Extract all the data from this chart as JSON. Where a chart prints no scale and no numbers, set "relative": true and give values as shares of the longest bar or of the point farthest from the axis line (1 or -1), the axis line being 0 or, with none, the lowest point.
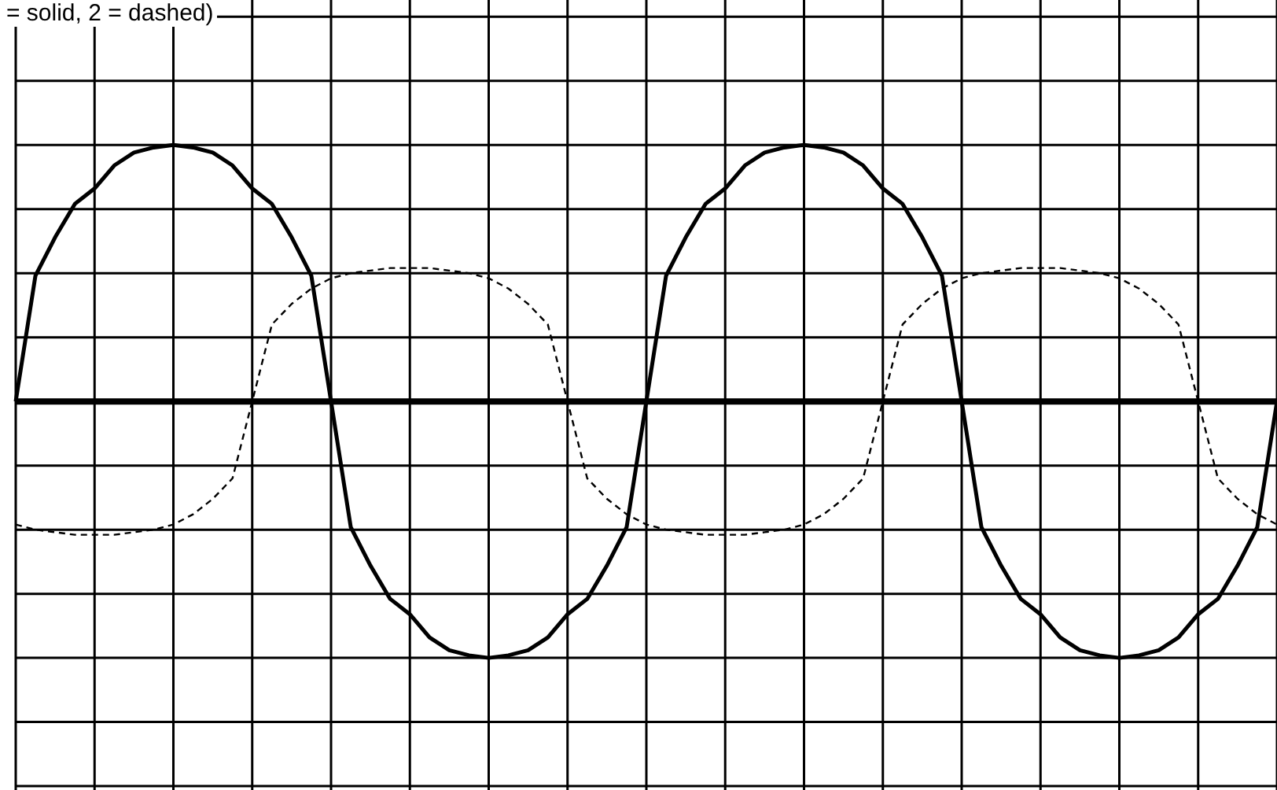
{
  "chart_data": {
    "type": "line",
    "title": "= solid, 2 = dashed)",
    "relative": true,
    "grid": true,
    "categories": [
      null,
      null,
      null,
      null,
      null,
      null,
      null,
      null,
      null,
      null,
      null,
      null,
      null,
      null,
      null,
      null,
      null,
      null,
      null,
      null,
      null,
      null,
      null,
      null,
      null,
      null,
      null,
      null,
      null,
      null,
      null,
      null,
      null,
      null,
      null,
      null,
      null,
      null,
      null,
      null,
      null,
      null,
      null,
      null,
      null,
      null,
      null,
      null,
      null,
      null,
      null,
      null,
      null,
      null,
      null,
      null,
      null,
      null,
      null,
      null,
      null,
      null,
      null,
      null,
      null
    ],
    "series": [
      {
        "color": "#000000",
        "line_style": "solid",
        "values": [
          0,
          0.49,
          0.64,
          0.77,
          0.83,
          0.92,
          0.97,
          0.99,
          1,
          0.99,
          0.97,
          0.92,
          0.83,
          0.77,
          0.64,
          0.49,
          0,
          -0.49,
          -0.64,
          -0.77,
          -0.83,
          -0.92,
          -0.97,
          -0.99,
          -1,
          -0.99,
          -0.97,
          -0.92,
          -0.83,
          -0.77,
          -0.64,
          -0.49,
          0,
          0.49,
          0.64,
          0.77,
          0.83,
          0.92,
          0.97,
          0.99,
          1,
          0.99,
          0.97,
          0.92,
          0.83,
          0.77,
          0.64,
          0.49,
          0,
          -0.49,
          -0.64,
          -0.77,
          -0.83,
          -0.92,
          -0.97,
          -0.99,
          -1,
          -0.99,
          -0.97,
          -0.92,
          -0.83,
          -0.77,
          -0.64,
          -0.49,
          0
        ]
      },
      {
        "color": "#000000",
        "line_style": "dashed",
        "values": [
          -0.48,
          -0.5,
          -0.51,
          -0.52,
          -0.52,
          -0.52,
          -0.51,
          -0.5,
          -0.48,
          -0.44,
          -0.38,
          -0.3,
          0,
          0.3,
          0.38,
          0.44,
          0.48,
          0.5,
          0.51,
          0.52,
          0.52,
          0.52,
          0.51,
          0.5,
          0.48,
          0.44,
          0.38,
          0.3,
          0,
          -0.3,
          -0.38,
          -0.44,
          -0.48,
          -0.5,
          -0.51,
          -0.52,
          -0.52,
          -0.52,
          -0.51,
          -0.5,
          -0.48,
          -0.44,
          -0.38,
          -0.3,
          0,
          0.3,
          0.38,
          0.44,
          0.48,
          0.5,
          0.51,
          0.52,
          0.52,
          0.52,
          0.51,
          0.5,
          0.48,
          0.44,
          0.38,
          0.3,
          0,
          -0.3,
          -0.38,
          -0.44,
          -0.48
        ]
      }
    ]
  }
}
